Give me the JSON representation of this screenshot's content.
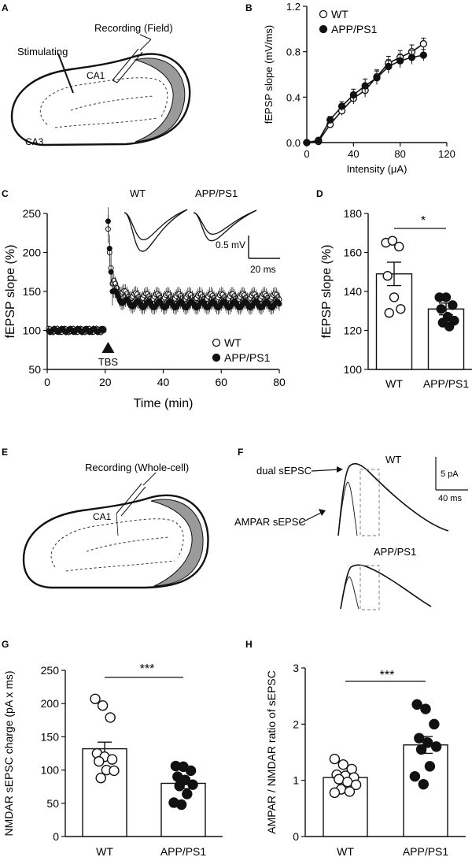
{
  "panel_letters": {
    "a": "A",
    "b": "B",
    "c": "C",
    "d": "D",
    "e": "E",
    "f": "F",
    "g": "G",
    "h": "H"
  },
  "schematic_a": {
    "recording": "Recording (Field)",
    "stimulating": "Stimulating",
    "ca1": "CA1",
    "ca3": "CA3"
  },
  "schematic_e": {
    "recording": "Recording (Whole-cell)",
    "ca1": "CA1"
  },
  "inset_c": {
    "wt": "WT",
    "app": "APP/PS1",
    "scale_y": "0.5 mV",
    "scale_x": "20 ms"
  },
  "traces_f": {
    "wt": "WT",
    "app": "APP/PS1",
    "dual": "dual sEPSC",
    "ampar": "AMPAR sEPSC",
    "scale_y": "5 pA",
    "scale_x": "40 ms"
  },
  "significance": {
    "d": "*",
    "g": "***",
    "h": "***"
  },
  "tbs_label": "TBS",
  "colors": {
    "ink": "#111111",
    "wt_fill": "#ffffff",
    "app_fill": "#111111",
    "slice_band": "#9a9a9a"
  },
  "chart_data": [
    {
      "id": "B",
      "type": "line",
      "xlabel": "Intensity (μA)",
      "ylabel": "fEPSP slope (mV/ms)",
      "xlim": [
        0,
        120
      ],
      "ylim": [
        0,
        1.2
      ],
      "xticks": [
        "0",
        "40",
        "80",
        "120"
      ],
      "yticks": [
        "0.0",
        "0.4",
        "0.8",
        "1.2"
      ],
      "legend": "top-left",
      "x": [
        0,
        10,
        20,
        30,
        40,
        50,
        60,
        70,
        80,
        90,
        100
      ],
      "series": [
        {
          "name": "WT",
          "marker": "open",
          "values": [
            0.0,
            0.01,
            0.16,
            0.28,
            0.39,
            0.46,
            0.58,
            0.7,
            0.75,
            0.8,
            0.87
          ],
          "err": [
            0.01,
            0.02,
            0.03,
            0.04,
            0.05,
            0.06,
            0.06,
            0.06,
            0.06,
            0.06,
            0.05
          ]
        },
        {
          "name": "APP/PS1",
          "marker": "filled",
          "values": [
            0.0,
            0.02,
            0.2,
            0.32,
            0.42,
            0.5,
            0.57,
            0.67,
            0.72,
            0.75,
            0.77
          ],
          "err": [
            0.01,
            0.02,
            0.03,
            0.04,
            0.05,
            0.06,
            0.06,
            0.06,
            0.06,
            0.06,
            0.05
          ]
        }
      ]
    },
    {
      "id": "C",
      "type": "scatter",
      "xlabel": "Time (min)",
      "ylabel": "fEPSP slope (%)",
      "xlim": [
        0,
        80
      ],
      "ylim": [
        50,
        250
      ],
      "xticks": [
        "0",
        "20",
        "40",
        "60",
        "80"
      ],
      "yticks": [
        "50",
        "100",
        "150",
        "200",
        "250"
      ],
      "legend": "bottom-right",
      "series": [
        {
          "name": "WT",
          "marker": "open",
          "baseline": 100,
          "peak": [
            230,
            200,
            180,
            160
          ],
          "plateau": 143,
          "noise": 4,
          "err": 9
        },
        {
          "name": "APP/PS1",
          "marker": "filled",
          "baseline": 100,
          "peak": [
            240,
            205,
            175,
            150
          ],
          "plateau": 133,
          "noise": 4,
          "err": 9
        }
      ],
      "baseline_range": [
        0,
        20
      ],
      "tbs_time": 21,
      "post_range": [
        21,
        80
      ],
      "step_min": 0.5
    },
    {
      "id": "D",
      "type": "bar",
      "ylabel": "fEPSP slope (%)",
      "ylim": [
        100,
        180
      ],
      "yticks": [
        "100",
        "120",
        "140",
        "160",
        "180"
      ],
      "categories": [
        "WT",
        "APP/PS1"
      ],
      "values": [
        149,
        131
      ],
      "sem": [
        6,
        3
      ],
      "points": [
        [
          165,
          166,
          163,
          148,
          137,
          131,
          129
        ],
        [
          137,
          137,
          133,
          131,
          127,
          125,
          124,
          122
        ]
      ]
    },
    {
      "id": "G",
      "type": "bar",
      "ylabel": "NMDAR sEPSC charge (pA x ms)",
      "ylim": [
        0,
        250
      ],
      "yticks": [
        "0",
        "50",
        "100",
        "150",
        "200",
        "250"
      ],
      "categories": [
        "WT",
        "APP/PS1"
      ],
      "values": [
        132,
        80
      ],
      "sem": [
        10,
        8
      ],
      "points": [
        [
          207,
          197,
          179,
          125,
          120,
          116,
          113,
          100,
          99,
          88
        ],
        [
          106,
          105,
          99,
          90,
          85,
          78,
          76,
          64,
          51,
          48
        ]
      ]
    },
    {
      "id": "H",
      "type": "bar",
      "ylabel": "AMPAR / NMDAR ratio of sEPSC",
      "ylim": [
        0,
        3
      ],
      "yticks": [
        "0",
        "1",
        "2",
        "3"
      ],
      "categories": [
        "WT",
        "APP/PS1"
      ],
      "values": [
        1.05,
        1.63
      ],
      "sem": [
        0.05,
        0.15
      ],
      "points": [
        [
          1.38,
          1.28,
          1.2,
          1.1,
          1.08,
          1.05,
          1.02,
          0.97,
          0.92,
          0.84,
          0.8,
          0.78
        ],
        [
          2.35,
          2.27,
          2.0,
          1.75,
          1.67,
          1.6,
          1.55,
          1.25,
          1.07,
          0.93
        ]
      ]
    }
  ]
}
